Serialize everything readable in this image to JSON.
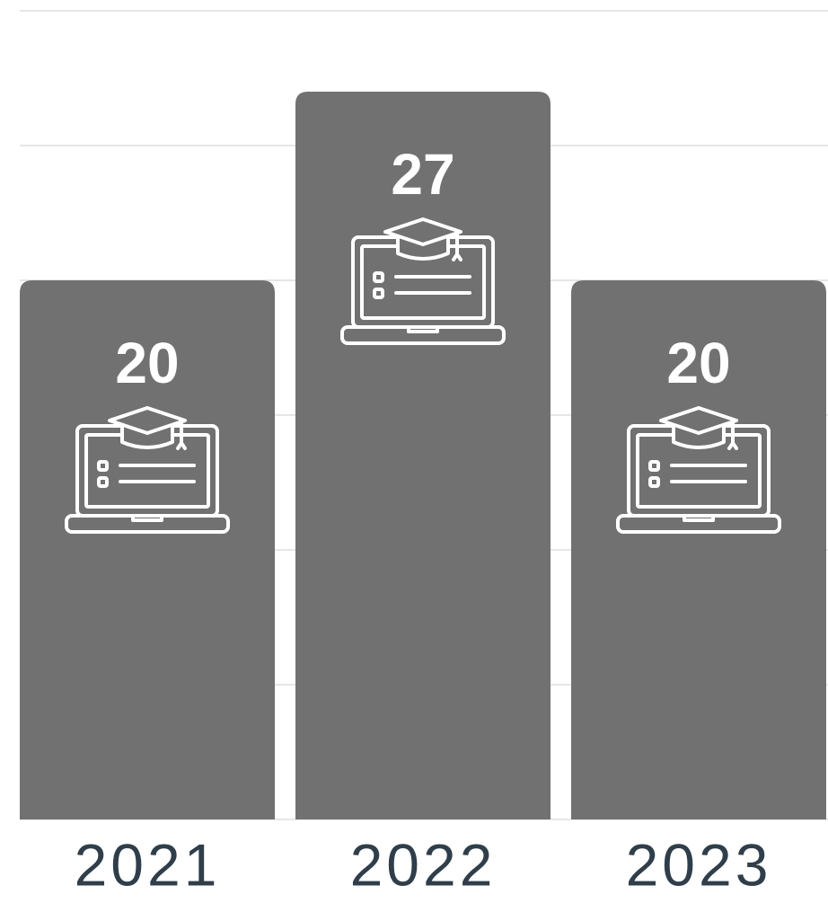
{
  "chart_data": {
    "type": "bar",
    "categories": [
      "2021",
      "2022",
      "2023"
    ],
    "values": [
      20,
      27,
      20
    ],
    "color": "#717171",
    "ylim": [
      0,
      30
    ],
    "yticks": [
      0,
      5,
      10,
      15,
      20,
      25,
      30
    ],
    "grid": true
  }
}
